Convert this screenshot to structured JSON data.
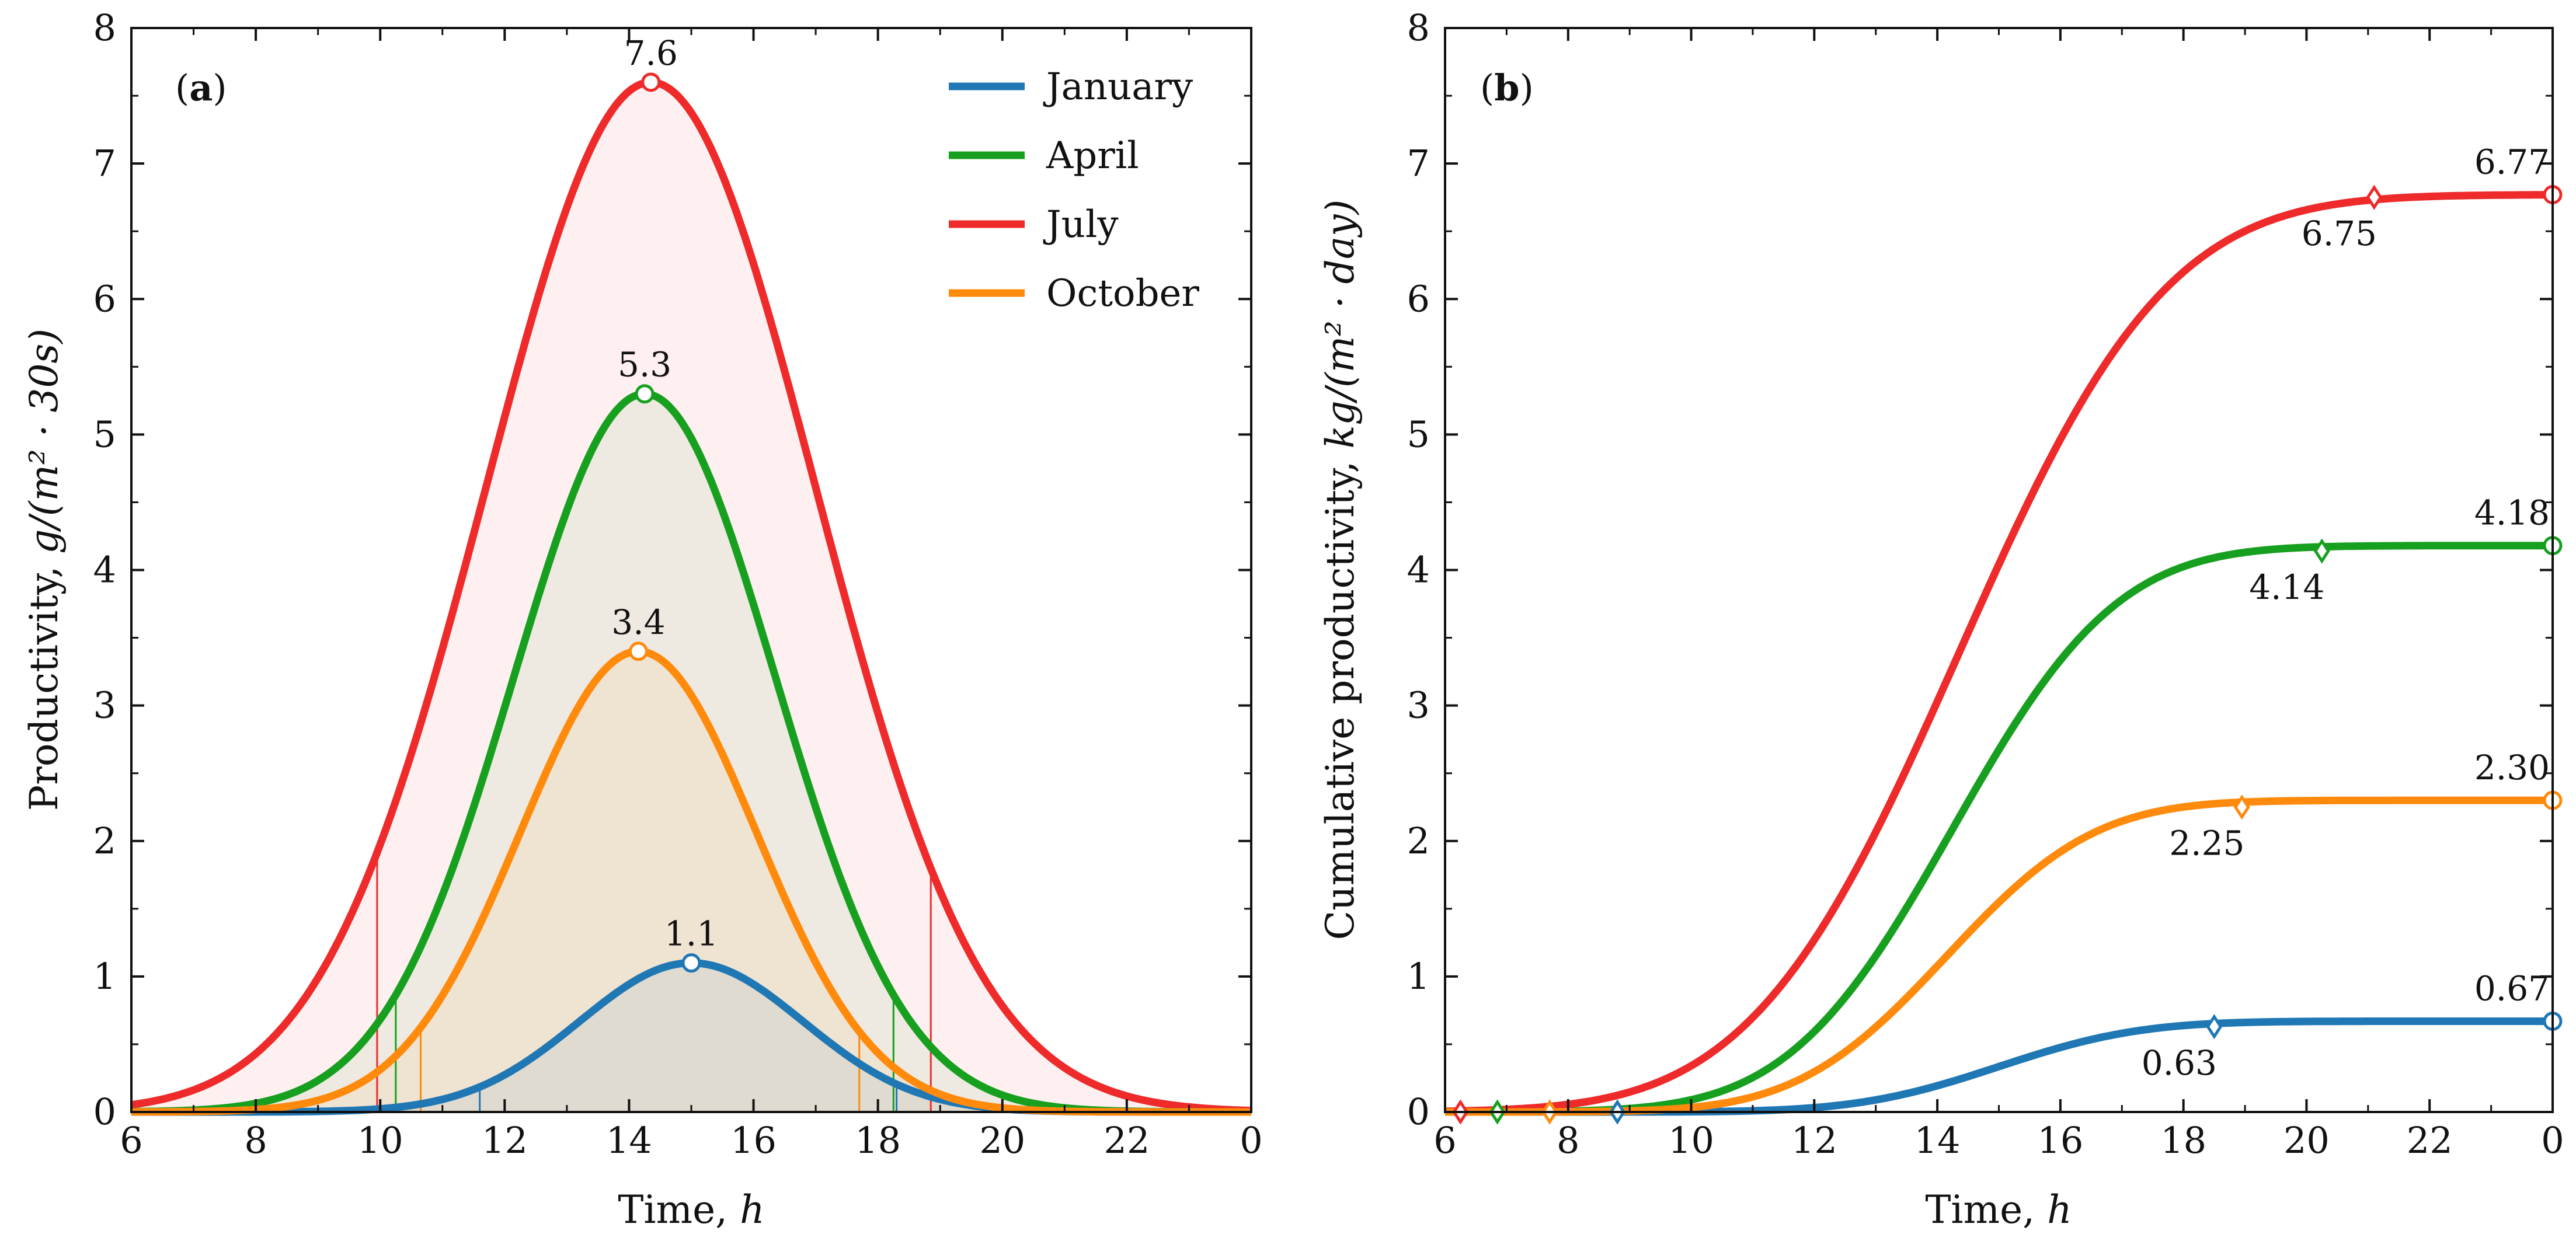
{
  "figure": {
    "panel_a_tag_open": "(",
    "panel_a_tag_letter": "a",
    "panel_a_tag_close": ")",
    "panel_b_tag_open": "(",
    "panel_b_tag_letter": "b",
    "panel_b_tag_close": ")"
  },
  "colors": {
    "January": "#1f77b4",
    "April": "#17a01f",
    "July": "#ee2a2a",
    "October": "#ff8a0c"
  },
  "chart_data": [
    {
      "id": "a",
      "type": "line",
      "title": "",
      "xlabel": "Time, ",
      "xlabel_var": "h",
      "ylabel_prefix": "Productivity, ",
      "ylabel_unit": "g/(m² · 30s)",
      "x_ticks": [
        "6",
        "8",
        "10",
        "12",
        "14",
        "16",
        "18",
        "20",
        "22",
        "0"
      ],
      "y_ticks": [
        "0",
        "1",
        "2",
        "3",
        "4",
        "5",
        "6",
        "7",
        "8"
      ],
      "xlim": [
        6,
        24
      ],
      "ylim": [
        0,
        8
      ],
      "legend_position": "top-right",
      "series": [
        {
          "name": "January",
          "peak_hour": 15.0,
          "peak_value": 1.1,
          "sigma": 1.8,
          "peak_label": "1.1",
          "shade_start": 11.6,
          "shade_end": 18.3
        },
        {
          "name": "April",
          "peak_hour": 14.25,
          "peak_value": 5.3,
          "sigma": 2.1,
          "peak_label": "5.3",
          "shade_start": 10.25,
          "shade_end": 18.25
        },
        {
          "name": "July",
          "peak_hour": 14.35,
          "peak_value": 7.6,
          "sigma": 2.65,
          "peak_label": "7.6",
          "shade_start": 9.95,
          "shade_end": 18.85
        },
        {
          "name": "October",
          "peak_hour": 14.15,
          "peak_value": 3.4,
          "sigma": 1.9,
          "peak_label": "3.4",
          "shade_start": 10.65,
          "shade_end": 17.7
        }
      ]
    },
    {
      "id": "b",
      "type": "line",
      "title": "",
      "xlabel": "Time, ",
      "xlabel_var": "h",
      "ylabel_prefix": "Cumulative productivity, ",
      "ylabel_unit": "kg/(m² · day)",
      "x_ticks": [
        "6",
        "8",
        "10",
        "12",
        "14",
        "16",
        "18",
        "20",
        "22",
        "0"
      ],
      "y_ticks": [
        "0",
        "1",
        "2",
        "3",
        "4",
        "5",
        "6",
        "7",
        "8"
      ],
      "xlim": [
        6,
        24
      ],
      "ylim": [
        0,
        8
      ],
      "series": [
        {
          "name": "January",
          "final": 0.67,
          "final_label": "0.67",
          "mid": 15.0,
          "sigma": 1.8,
          "start_marker_hour": 8.8,
          "mark_hour": 18.5,
          "mark_value": 0.63,
          "mark_label": "0.63"
        },
        {
          "name": "April",
          "final": 4.18,
          "final_label": "4.18",
          "mid": 14.25,
          "sigma": 2.1,
          "start_marker_hour": 6.85,
          "mark_hour": 20.25,
          "mark_value": 4.14,
          "mark_label": "4.14"
        },
        {
          "name": "July",
          "final": 6.77,
          "final_label": "6.77",
          "mid": 14.35,
          "sigma": 2.65,
          "start_marker_hour": 6.25,
          "mark_hour": 21.1,
          "mark_value": 6.75,
          "mark_label": "6.75"
        },
        {
          "name": "October",
          "final": 2.3,
          "final_label": "2.30",
          "mid": 14.15,
          "sigma": 1.9,
          "start_marker_hour": 7.7,
          "mark_hour": 18.95,
          "mark_value": 2.25,
          "mark_label": "2.25"
        }
      ]
    }
  ]
}
